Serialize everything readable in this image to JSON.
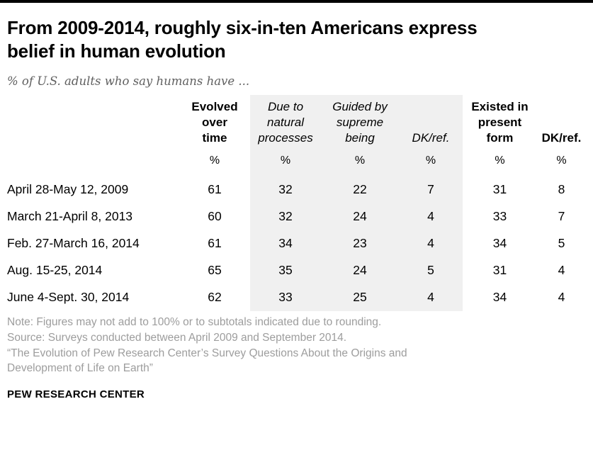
{
  "title": "From 2009-2014, roughly six-in-ten Americans express\nbelief in human evolution",
  "subtitle": "% of U.S. adults who say humans have ...",
  "chart_data": {
    "type": "table",
    "columns": [
      {
        "label": "Evolved\nover\ntime",
        "style": "bold",
        "shaded": false
      },
      {
        "label": "Due to\nnatural\nprocesses",
        "style": "italic",
        "shaded": true
      },
      {
        "label": "Guided by\nsupreme\nbeing",
        "style": "italic",
        "shaded": true
      },
      {
        "label": "DK/ref.",
        "style": "italic",
        "shaded": true
      },
      {
        "label": "Existed in\npresent\nform",
        "style": "bold",
        "shaded": false
      },
      {
        "label": "DK/ref.",
        "style": "bold",
        "shaded": false
      }
    ],
    "unit_row": [
      "%",
      "%",
      "%",
      "%",
      "%",
      "%"
    ],
    "rows": [
      {
        "label": "April 28-May 12, 2009",
        "values": [
          61,
          32,
          22,
          7,
          31,
          8
        ]
      },
      {
        "label": "March 21-April 8, 2013",
        "values": [
          60,
          32,
          24,
          4,
          33,
          7
        ]
      },
      {
        "label": "Feb. 27-March 16, 2014",
        "values": [
          61,
          34,
          23,
          4,
          34,
          5
        ]
      },
      {
        "label": "Aug. 15-25, 2014",
        "values": [
          65,
          35,
          24,
          5,
          31,
          4
        ]
      },
      {
        "label": "June 4-Sept. 30, 2014",
        "values": [
          62,
          33,
          25,
          4,
          34,
          4
        ]
      }
    ],
    "shaded_background_color": "#f0f0f0"
  },
  "notes": [
    "Note: Figures may not add to 100% or to subtotals indicated due to rounding.",
    "Source: Surveys conducted between April 2009 and September 2014.",
    "“The Evolution of Pew Research Center’s Survey Questions About the Origins and\nDevelopment of Life on Earth”"
  ],
  "footer": "PEW RESEARCH CENTER"
}
